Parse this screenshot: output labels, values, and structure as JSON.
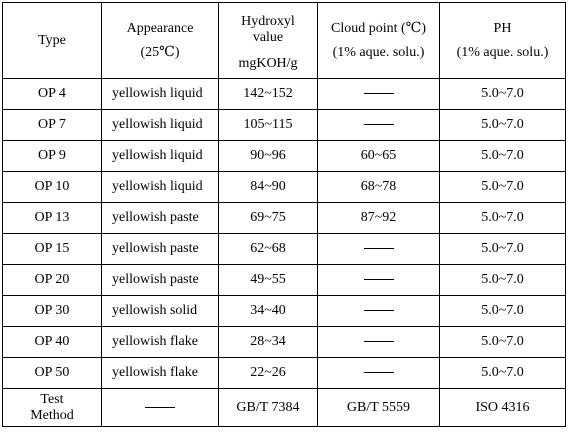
{
  "table": {
    "headers": {
      "type": "Type",
      "appearance": "Appearance",
      "appearance_sub": "(25℃)",
      "hydroxyl_line1": "Hydroxyl",
      "hydroxyl_line2": "value",
      "hydroxyl_unit": "mgKOH/g",
      "cloud": "Cloud point (℃)",
      "cloud_sub": "(1% aque. solu.)",
      "ph": "PH",
      "ph_sub": "(1% aque. solu.)"
    },
    "rows": [
      {
        "type": "OP 4",
        "appearance": "yellowish liquid",
        "hydroxyl": "142~152",
        "cloud": "——",
        "ph": "5.0~7.0"
      },
      {
        "type": "OP 7",
        "appearance": "yellowish liquid",
        "hydroxyl": "105~115",
        "cloud": "——",
        "ph": "5.0~7.0"
      },
      {
        "type": "OP 9",
        "appearance": "yellowish liquid",
        "hydroxyl": "90~96",
        "cloud": "60~65",
        "ph": "5.0~7.0"
      },
      {
        "type": "OP 10",
        "appearance": "yellowish liquid",
        "hydroxyl": "84~90",
        "cloud": "68~78",
        "ph": "5.0~7.0"
      },
      {
        "type": "OP 13",
        "appearance": "yellowish paste",
        "hydroxyl": "69~75",
        "cloud": "87~92",
        "ph": "5.0~7.0"
      },
      {
        "type": "OP 15",
        "appearance": "yellowish paste",
        "hydroxyl": "62~68",
        "cloud": "——",
        "ph": "5.0~7.0"
      },
      {
        "type": "OP 20",
        "appearance": "yellowish paste",
        "hydroxyl": "49~55",
        "cloud": "——",
        "ph": "5.0~7.0"
      },
      {
        "type": "OP 30",
        "appearance": "yellowish solid",
        "hydroxyl": "34~40",
        "cloud": "——",
        "ph": "5.0~7.0"
      },
      {
        "type": "OP 40",
        "appearance": "yellowish flake",
        "hydroxyl": "28~34",
        "cloud": "——",
        "ph": "5.0~7.0"
      },
      {
        "type": "OP 50",
        "appearance": "yellowish flake",
        "hydroxyl": "22~26",
        "cloud": "——",
        "ph": "5.0~7.0"
      }
    ],
    "test_method": {
      "type_line1": "Test",
      "type_line2": "Method",
      "appearance": "——",
      "hydroxyl": "GB/T 7384",
      "cloud": "GB/T 5559",
      "ph": "ISO 4316"
    }
  }
}
